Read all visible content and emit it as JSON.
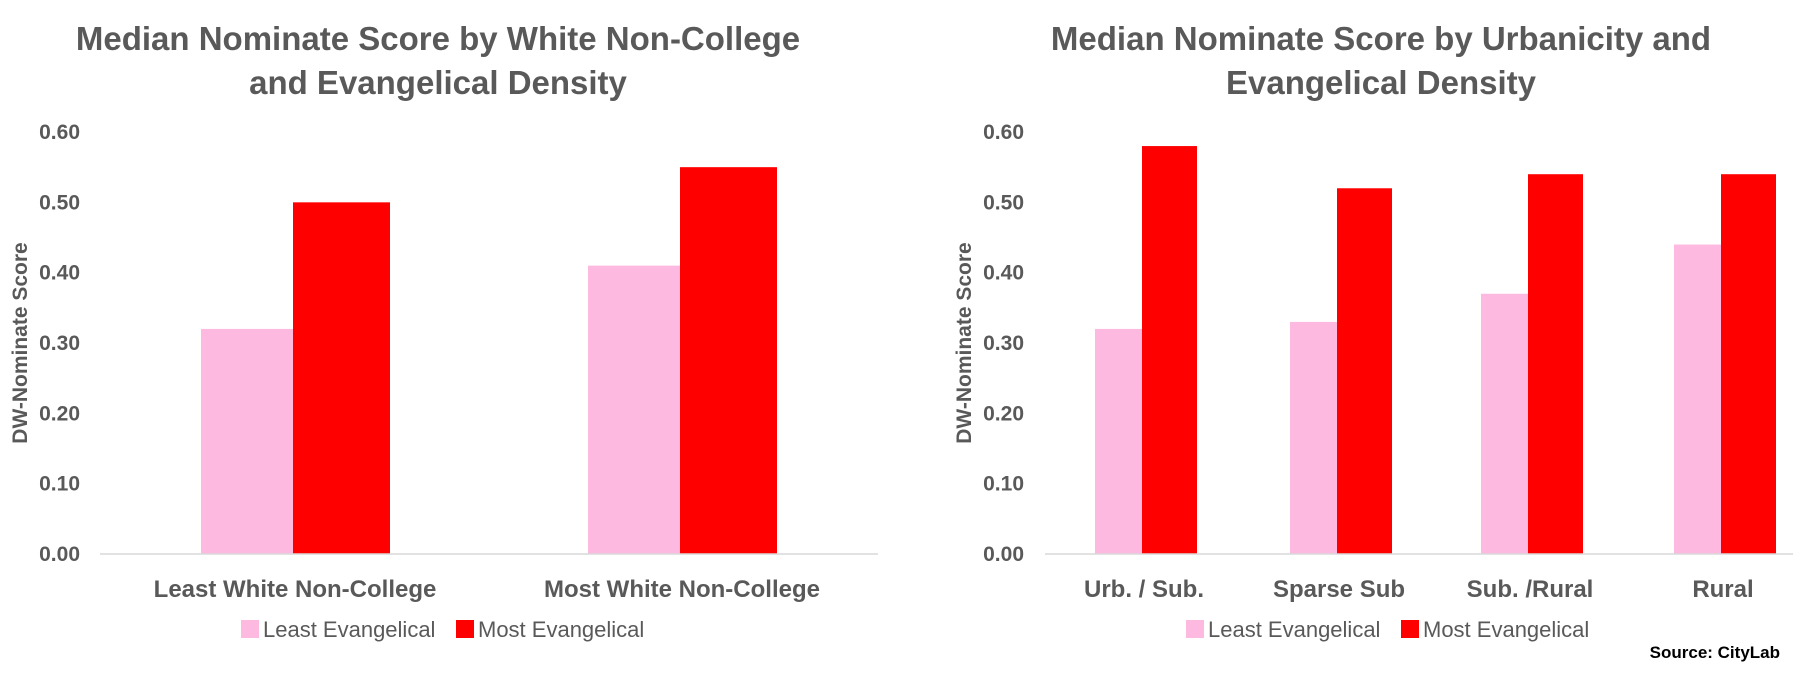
{
  "source": "Source: CityLab",
  "colors": {
    "least": "#FDB9E0",
    "most": "#FF0000",
    "text": "#595959",
    "axis": "#D9D9D9"
  },
  "chart_data": [
    {
      "type": "bar",
      "title_lines": [
        "Median Nominate Score by White Non-College",
        "and Evangelical Density"
      ],
      "ylabel": "DW-Nominate Score",
      "ylim": [
        0,
        0.6
      ],
      "yticks": [
        "0.00",
        "0.10",
        "0.20",
        "0.30",
        "0.40",
        "0.50",
        "0.60"
      ],
      "categories": [
        "Least White Non-College",
        "Most White Non-College"
      ],
      "series": [
        {
          "name": "Least Evangelical",
          "values": [
            0.32,
            0.41
          ]
        },
        {
          "name": "Most Evangelical",
          "values": [
            0.5,
            0.55
          ]
        }
      ],
      "legend": "bottom",
      "grid": false
    },
    {
      "type": "bar",
      "title_lines": [
        "Median Nominate Score by Urbanicity and",
        "Evangelical Density"
      ],
      "ylabel": "DW-Nominate Score",
      "ylim": [
        0,
        0.6
      ],
      "yticks": [
        "0.00",
        "0.10",
        "0.20",
        "0.30",
        "0.40",
        "0.50",
        "0.60"
      ],
      "categories": [
        "Urb. / Sub.",
        "Sparse Sub",
        "Sub. /Rural",
        "Rural"
      ],
      "series": [
        {
          "name": "Least Evangelical",
          "values": [
            0.32,
            0.33,
            0.37,
            0.44
          ]
        },
        {
          "name": "Most Evangelical",
          "values": [
            0.58,
            0.52,
            0.54,
            0.54
          ]
        }
      ],
      "legend": "bottom",
      "grid": false
    }
  ]
}
